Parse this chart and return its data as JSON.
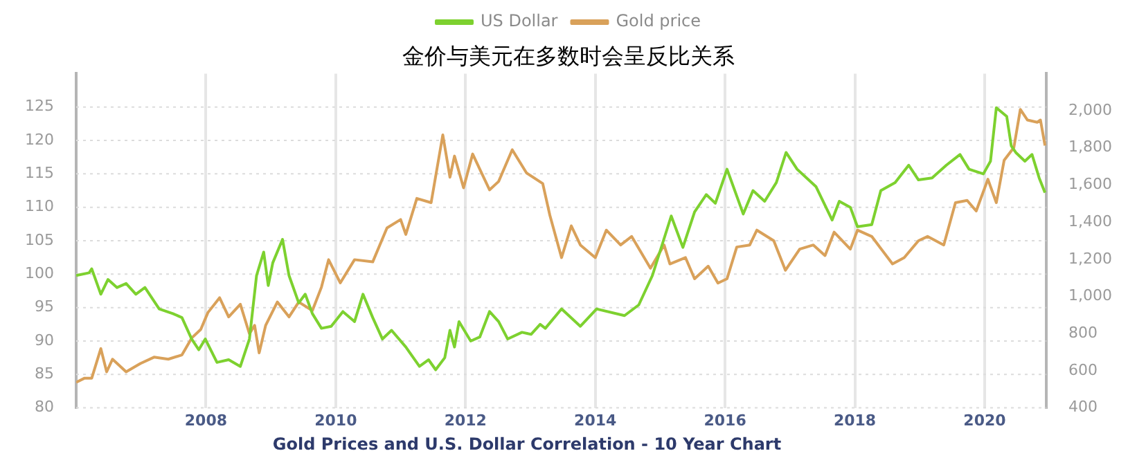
{
  "chart_data": {
    "type": "line",
    "title": "金价与美元在多数时会呈反比关系",
    "annotations": [
      "Gold Prices and U.S. Dollar Correlation - 10 Year Chart"
    ],
    "legend": "top",
    "grid": true,
    "marker": "none",
    "line_style": "solid",
    "xlim": [
      2006,
      2020.95
    ],
    "xticks": [
      2008,
      2010,
      2012,
      2014,
      2016,
      2018,
      2020
    ],
    "ylim": [
      80,
      130
    ],
    "yticks": [
      80,
      85,
      90,
      95,
      100,
      105,
      110,
      115,
      120,
      125
    ],
    "y2lim": [
      400,
      2200
    ],
    "y2ticks": [
      {
        "value": 400,
        "label": "400"
      },
      {
        "value": 600,
        "label": "600"
      },
      {
        "value": 800,
        "label": "800"
      },
      {
        "value": 1000,
        "label": "1,000"
      },
      {
        "value": 1200,
        "label": "1,200"
      },
      {
        "value": 1400,
        "label": "1,400"
      },
      {
        "value": 1600,
        "label": "1,600"
      },
      {
        "value": 1800,
        "label": "1,800"
      },
      {
        "value": 2000,
        "label": "2,000"
      }
    ],
    "series": [
      {
        "name": "US Dollar",
        "color": "#7dd12f",
        "x": [
          2006.0,
          2006.2,
          2006.24,
          2006.38,
          2006.49,
          2006.63,
          2006.77,
          2006.92,
          2007.06,
          2007.28,
          2007.49,
          2007.63,
          2007.78,
          2007.89,
          2007.99,
          2008.17,
          2008.35,
          2008.53,
          2008.67,
          2008.78,
          2008.89,
          2008.96,
          2009.03,
          2009.18,
          2009.28,
          2009.43,
          2009.53,
          2009.64,
          2009.78,
          2009.93,
          2010.11,
          2010.29,
          2010.42,
          2010.57,
          2010.72,
          2010.86,
          2011.08,
          2011.29,
          2011.43,
          2011.54,
          2011.68,
          2011.76,
          2011.83,
          2011.9,
          2012.08,
          2012.22,
          2012.37,
          2012.51,
          2012.65,
          2012.87,
          2013.01,
          2013.15,
          2013.23,
          2013.48,
          2013.77,
          2014.02,
          2014.45,
          2014.67,
          2014.88,
          2015.17,
          2015.35,
          2015.53,
          2015.71,
          2015.85,
          2016.03,
          2016.28,
          2016.43,
          2016.61,
          2016.79,
          2016.94,
          2017.11,
          2017.4,
          2017.65,
          2017.76,
          2017.93,
          2018.04,
          2018.26,
          2018.4,
          2018.62,
          2018.83,
          2018.98,
          2019.19,
          2019.41,
          2019.62,
          2019.76,
          2019.98,
          2020.09,
          2020.18,
          2020.34,
          2020.41,
          2020.48,
          2020.62,
          2020.73,
          2020.84,
          2020.93
        ],
        "values": [
          99.8,
          100.2,
          100.8,
          97,
          99.2,
          98,
          98.6,
          97,
          98,
          94.8,
          94.1,
          93.5,
          90.3,
          88.7,
          90.3,
          86.8,
          87.2,
          86.2,
          90.3,
          99.8,
          103.3,
          98.3,
          101.7,
          105.2,
          99.8,
          95.7,
          97,
          94.1,
          91.9,
          92.2,
          94.4,
          92.9,
          97,
          93.5,
          90.3,
          91.6,
          89.1,
          86.2,
          87.2,
          85.7,
          87.5,
          91.6,
          89.1,
          92.9,
          90,
          90.6,
          94.4,
          92.9,
          90.3,
          91.3,
          91,
          92.5,
          91.9,
          94.8,
          92.2,
          94.8,
          93.8,
          95.4,
          99.8,
          108.7,
          104,
          109.3,
          111.9,
          110.6,
          115.7,
          109,
          112.5,
          110.9,
          113.7,
          118.2,
          115.7,
          113.1,
          108.1,
          110.9,
          110,
          107.1,
          107.4,
          112.5,
          113.7,
          116.3,
          114.1,
          114.4,
          116.3,
          117.9,
          115.7,
          115,
          116.9,
          124.9,
          123.6,
          119.2,
          118.2,
          116.9,
          117.9,
          114.4,
          112.2
        ]
      },
      {
        "name": "Gold price",
        "color": "#d9a15a",
        "axis": "y2",
        "x": [
          2006.0,
          2006.13,
          2006.24,
          2006.38,
          2006.47,
          2006.56,
          2006.77,
          2006.99,
          2007.2,
          2007.42,
          2007.63,
          2007.78,
          2007.92,
          2008.03,
          2008.21,
          2008.35,
          2008.53,
          2008.67,
          2008.75,
          2008.82,
          2008.92,
          2009.1,
          2009.28,
          2009.43,
          2009.64,
          2009.78,
          2009.89,
          2010.07,
          2010.29,
          2010.57,
          2010.79,
          2011.0,
          2011.08,
          2011.25,
          2011.47,
          2011.65,
          2011.76,
          2011.83,
          2011.97,
          2012.11,
          2012.37,
          2012.51,
          2012.72,
          2012.94,
          2013.19,
          2013.3,
          2013.48,
          2013.63,
          2013.77,
          2014.0,
          2014.17,
          2014.39,
          2014.56,
          2014.85,
          2015.06,
          2015.15,
          2015.39,
          2015.53,
          2015.74,
          2015.89,
          2016.03,
          2016.18,
          2016.38,
          2016.49,
          2016.75,
          2016.93,
          2017.15,
          2017.36,
          2017.54,
          2017.68,
          2017.93,
          2018.04,
          2018.26,
          2018.58,
          2018.76,
          2018.98,
          2019.12,
          2019.37,
          2019.55,
          2019.73,
          2019.87,
          2020.05,
          2020.18,
          2020.3,
          2020.45,
          2020.55,
          2020.66,
          2020.81,
          2020.86,
          2020.93
        ],
        "values": [
          537,
          560,
          560,
          719,
          594,
          662,
          594,
          639,
          673,
          662,
          685,
          776,
          822,
          913,
          993,
          890,
          958,
          799,
          844,
          696,
          844,
          970,
          890,
          970,
          924,
          1050,
          1198,
          1073,
          1198,
          1186,
          1369,
          1414,
          1334,
          1528,
          1505,
          1870,
          1642,
          1756,
          1585,
          1767,
          1574,
          1619,
          1790,
          1665,
          1608,
          1437,
          1209,
          1380,
          1277,
          1209,
          1357,
          1277,
          1323,
          1152,
          1277,
          1175,
          1209,
          1095,
          1163,
          1072,
          1095,
          1266,
          1277,
          1357,
          1300,
          1141,
          1255,
          1277,
          1220,
          1346,
          1255,
          1357,
          1323,
          1175,
          1209,
          1300,
          1323,
          1277,
          1505,
          1517,
          1460,
          1631,
          1505,
          1733,
          1802,
          2007,
          1950,
          1938,
          1950,
          1813
        ]
      }
    ]
  }
}
